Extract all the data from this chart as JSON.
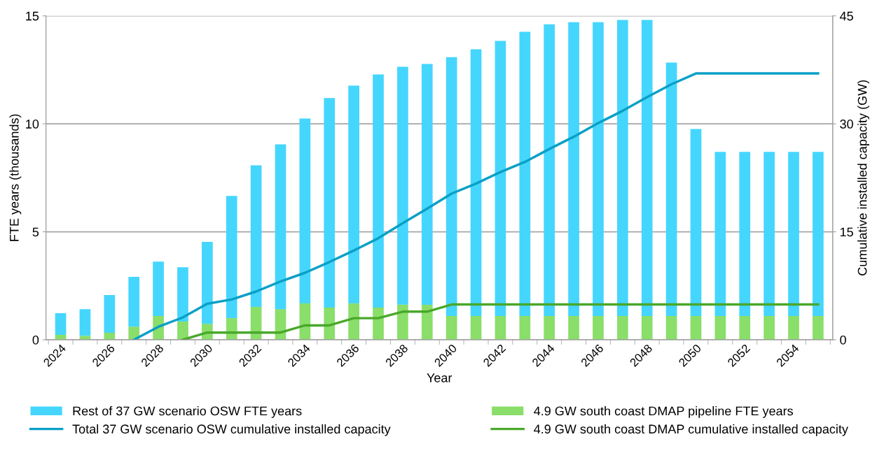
{
  "chart_data": {
    "type": "bar",
    "stacked": true,
    "xlabel": "Year",
    "ylabel": "FTE years (thousands)",
    "y2label": "Cumulative installed capacity (GW)",
    "categories": [
      "2024",
      null,
      "2026",
      null,
      "2028",
      null,
      "2030",
      null,
      "2032",
      null,
      "2034",
      null,
      "2036",
      null,
      "2038",
      null,
      "2040",
      null,
      "2042",
      null,
      "2044",
      null,
      "2046",
      null,
      "2048",
      null,
      "2050",
      null,
      "2052",
      null,
      "2054",
      null
    ],
    "ylim": [
      0,
      15
    ],
    "yticks": [
      0,
      5,
      10,
      15
    ],
    "y2lim": [
      0,
      45
    ],
    "y2ticks": [
      0,
      15,
      30,
      45
    ],
    "grid": "y",
    "legend": "bottom",
    "series": [
      {
        "name": "4.9 GW south coast DMAP pipeline FTE years",
        "color": "#8ade6a",
        "values": [
          0.23,
          0.19,
          0.32,
          0.61,
          1.1,
          0.84,
          0.74,
          1.0,
          1.52,
          1.42,
          1.68,
          1.49,
          1.68,
          1.49,
          1.63,
          1.62,
          1.1,
          1.1,
          1.1,
          1.1,
          1.1,
          1.1,
          1.1,
          1.1,
          1.1,
          1.1,
          1.1,
          1.1,
          1.1,
          1.1,
          1.1,
          1.1
        ]
      },
      {
        "name": "Rest of 37 GW scenario OSW FTE years",
        "color": "#45d6fe",
        "values": [
          1.0,
          1.23,
          1.75,
          2.3,
          2.52,
          2.52,
          3.79,
          5.66,
          6.56,
          7.63,
          8.57,
          9.7,
          10.09,
          10.8,
          11.01,
          11.15,
          11.99,
          12.35,
          12.74,
          13.16,
          13.51,
          13.61,
          13.61,
          13.71,
          13.71,
          11.74,
          8.66,
          7.6,
          7.6,
          7.6,
          7.6,
          7.6
        ]
      },
      {
        "name": "Total 37 GW scenario OSW cumulative installed capacity",
        "type": "line",
        "axis": "y2",
        "color": "#09a0c6",
        "values": [
          null,
          null,
          null,
          0,
          1.8,
          3.1,
          5.0,
          5.6,
          6.7,
          8.1,
          9.3,
          10.8,
          12.4,
          14.1,
          16.2,
          18.2,
          20.3,
          21.7,
          23.3,
          24.7,
          26.5,
          28.2,
          30.1,
          31.8,
          33.7,
          35.5,
          37,
          37,
          37,
          37,
          37,
          37
        ]
      },
      {
        "name": "4.9 GW south coast DMAP cumulative installed capacity",
        "type": "line",
        "axis": "y2",
        "color": "#4aa82a",
        "values": [
          null,
          null,
          null,
          null,
          null,
          0,
          1.0,
          1.0,
          1.0,
          1.0,
          2.0,
          2.0,
          3.0,
          3.0,
          3.9,
          3.9,
          4.9,
          4.9,
          4.9,
          4.9,
          4.9,
          4.9,
          4.9,
          4.9,
          4.9,
          4.9,
          4.9,
          4.9,
          4.9,
          4.9,
          4.9,
          4.9
        ]
      }
    ]
  }
}
